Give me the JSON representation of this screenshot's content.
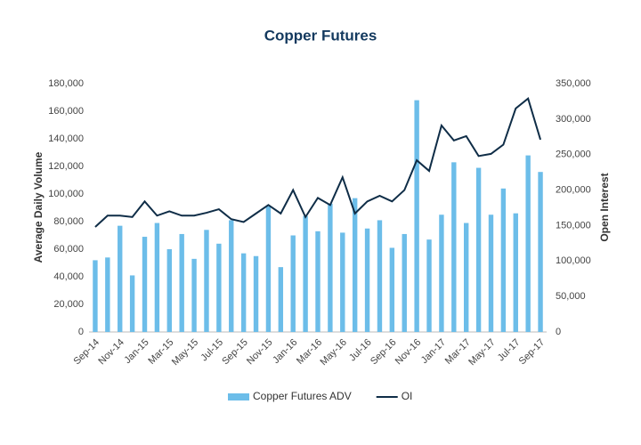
{
  "chart_data": {
    "type": "bar-line",
    "title": "Copper Futures",
    "categories": [
      "Sep-14",
      null,
      "Nov-14",
      null,
      "Jan-15",
      null,
      "Mar-15",
      null,
      "May-15",
      null,
      "Jul-15",
      null,
      "Sep-15",
      null,
      "Nov-15",
      null,
      "Jan-16",
      null,
      "Mar-16",
      null,
      "May-16",
      null,
      "Jul-16",
      null,
      "Sep-16",
      null,
      "Nov-16",
      null,
      "Jan-17",
      null,
      "Mar-17",
      null,
      "May-17",
      null,
      "Jul-17",
      null,
      "Sep-17"
    ],
    "series": [
      {
        "name": "Copper Futures ADV",
        "type": "bar",
        "color": "#6cbde9",
        "axis": "y",
        "values": [
          52000,
          54000,
          77000,
          41000,
          69000,
          79000,
          60000,
          71000,
          53000,
          74000,
          64000,
          81000,
          57000,
          55000,
          91000,
          47000,
          70000,
          84000,
          73000,
          93000,
          72000,
          97000,
          75000,
          81000,
          61000,
          71000,
          168000,
          67000,
          85000,
          123000,
          79000,
          119000,
          85000,
          104000,
          86000,
          128000,
          116000
        ]
      },
      {
        "name": "OI",
        "type": "line",
        "color": "#0f2d47",
        "axis": "y2",
        "values": [
          148000,
          164000,
          164000,
          162000,
          184000,
          164000,
          170000,
          164000,
          164000,
          168000,
          173000,
          159000,
          155000,
          167000,
          179000,
          167000,
          200000,
          162000,
          189000,
          179000,
          218000,
          167000,
          184000,
          192000,
          184000,
          200000,
          242000,
          227000,
          291000,
          270000,
          276000,
          248000,
          251000,
          264000,
          315000,
          329000,
          271000
        ]
      }
    ],
    "ylabel": "Average Daily Volume",
    "y2label": "Open Interest",
    "ylim": [
      0,
      180000
    ],
    "yticks": [
      0,
      {
        "value": 20000,
        "label": "20,000"
      },
      {
        "value": 40000,
        "label": "40,000"
      },
      {
        "value": 60000,
        "label": "60,000"
      },
      {
        "value": 80000,
        "label": "80,000"
      },
      {
        "value": 100000,
        "label": "100,000"
      },
      {
        "value": 120000,
        "label": "120,000"
      },
      {
        "value": 140000,
        "label": "140,000"
      },
      {
        "value": 160000,
        "label": "160,000"
      },
      {
        "value": 180000,
        "label": "180,000"
      }
    ],
    "y2lim": [
      0,
      350000
    ],
    "y2ticks": [
      0,
      {
        "value": 50000,
        "label": "50,000"
      },
      {
        "value": 100000,
        "label": "100,000"
      },
      {
        "value": 150000,
        "label": "150,000"
      },
      {
        "value": 200000,
        "label": "200,000"
      },
      {
        "value": 250000,
        "label": "250,000"
      },
      {
        "value": 300000,
        "label": "300,000"
      },
      {
        "value": 350000,
        "label": "350,000"
      }
    ],
    "grid": false,
    "legend": "bottom"
  }
}
